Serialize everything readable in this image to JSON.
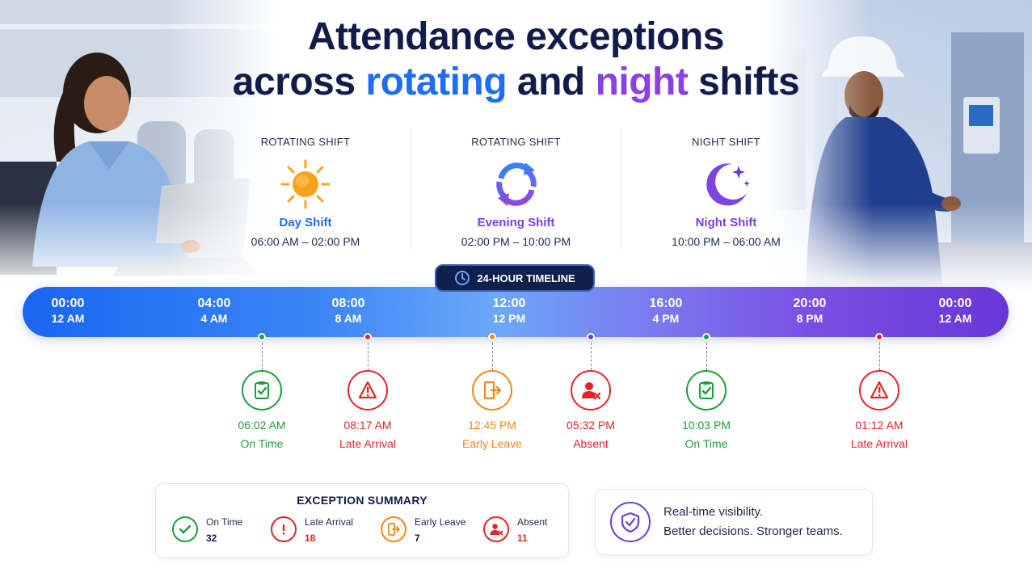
{
  "headline": {
    "line1": "Attendance exceptions",
    "line2_pre": "across ",
    "line2_blue": "rotating",
    "line2_mid": " and ",
    "line2_purple": "night",
    "line2_post": " shifts"
  },
  "shifts": [
    {
      "kind": "ROTATING SHIFT",
      "name": "Day Shift",
      "time": "06:00 AM – 02:00 PM",
      "icon": "sun-icon",
      "color": "#1f6df2"
    },
    {
      "kind": "ROTATING SHIFT",
      "name": "Evening Shift",
      "time": "02:00 PM – 10:00 PM",
      "icon": "rotate-arrows-icon",
      "color": "#7a3fe0"
    },
    {
      "kind": "NIGHT SHIFT",
      "name": "Night Shift",
      "time": "10:00 PM – 06:00 AM",
      "icon": "moon-stars-icon",
      "color": "#7a3fe0"
    }
  ],
  "timeline": {
    "label": "24-HOUR TIMELINE",
    "ticks": [
      {
        "t24": "00:00",
        "t12": "12 AM"
      },
      {
        "t24": "04:00",
        "t12": "4 AM"
      },
      {
        "t24": "08:00",
        "t12": "8 AM"
      },
      {
        "t24": "12:00",
        "t12": "12 PM"
      },
      {
        "t24": "16:00",
        "t12": "4 PM"
      },
      {
        "t24": "20:00",
        "t12": "8 PM"
      },
      {
        "t24": "00:00",
        "t12": "12 AM"
      }
    ]
  },
  "events": [
    {
      "time": "06:02 AM",
      "label": "On Time",
      "status": "on-time",
      "color": "#1e9e3a",
      "icon": "clipboard-check-icon"
    },
    {
      "time": "08:17 AM",
      "label": "Late Arrival",
      "status": "late",
      "color": "#e0262b",
      "icon": "alarm-alert-icon"
    },
    {
      "time": "12:45 PM",
      "label": "Early Leave",
      "status": "early-leave",
      "color": "#f0881a",
      "icon": "exit-door-icon"
    },
    {
      "time": "05:32 PM",
      "label": "Absent",
      "status": "absent",
      "color": "#e0262b",
      "icon": "user-x-icon"
    },
    {
      "time": "10:03 PM",
      "label": "On Time",
      "status": "on-time",
      "color": "#1e9e3a",
      "icon": "clipboard-check-icon"
    },
    {
      "time": "01:12 AM",
      "label": "Late Arrival",
      "status": "late",
      "color": "#e0262b",
      "icon": "alarm-alert-icon"
    }
  ],
  "summary": {
    "title": "EXCEPTION SUMMARY",
    "items": [
      {
        "label": "On Time",
        "value": "32",
        "color": "#1e9e3a",
        "icon": "check-circle-icon"
      },
      {
        "label": "Late Arrival",
        "value": "18",
        "color": "#e0262b",
        "icon": "exclamation-icon"
      },
      {
        "label": "Early Leave",
        "value": "7",
        "color": "#f0881a",
        "icon": "exit-door-icon"
      },
      {
        "label": "Absent",
        "value": "11",
        "color": "#e0262b",
        "icon": "user-x-icon"
      }
    ]
  },
  "message": {
    "line1": "Real-time visibility.",
    "line2": "Better decisions. Stronger teams.",
    "icon": "shield-check-icon"
  }
}
